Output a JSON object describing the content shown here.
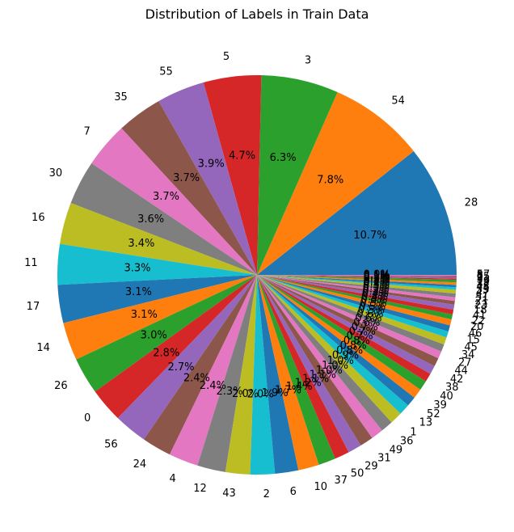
{
  "chart_data": {
    "type": "pie",
    "title": "Distribution of Labels in Train Data",
    "start_angle_deg": 0,
    "direction": "counterclockwise",
    "autopct": "%1.1f%%",
    "colors": [
      "#1f77b4",
      "#ff7f0e",
      "#2ca02c",
      "#d62728",
      "#9467bd",
      "#8c564b",
      "#e377c2",
      "#7f7f7f",
      "#bcbd22",
      "#17becf"
    ],
    "slices": [
      {
        "label": "28",
        "value": 10.7
      },
      {
        "label": "54",
        "value": 7.8
      },
      {
        "label": "3",
        "value": 6.3
      },
      {
        "label": "5",
        "value": 4.7
      },
      {
        "label": "55",
        "value": 3.9
      },
      {
        "label": "35",
        "value": 3.7
      },
      {
        "label": "7",
        "value": 3.7
      },
      {
        "label": "30",
        "value": 3.6
      },
      {
        "label": "16",
        "value": 3.4
      },
      {
        "label": "11",
        "value": 3.3
      },
      {
        "label": "17",
        "value": 3.1
      },
      {
        "label": "14",
        "value": 3.1
      },
      {
        "label": "26",
        "value": 3.0
      },
      {
        "label": "0",
        "value": 2.8
      },
      {
        "label": "56",
        "value": 2.7
      },
      {
        "label": "24",
        "value": 2.4
      },
      {
        "label": "4",
        "value": 2.4
      },
      {
        "label": "12",
        "value": 2.3
      },
      {
        "label": "43",
        "value": 2.0
      },
      {
        "label": "2",
        "value": 2.0
      },
      {
        "label": "6",
        "value": 1.9
      },
      {
        "label": "10",
        "value": 1.7
      },
      {
        "label": "37",
        "value": 1.4
      },
      {
        "label": "50",
        "value": 1.2
      },
      {
        "label": "29",
        "value": 1.1
      },
      {
        "label": "31",
        "value": 1.1
      },
      {
        "label": "49",
        "value": 1.0
      },
      {
        "label": "36",
        "value": 1.0
      },
      {
        "label": "1",
        "value": 1.0
      },
      {
        "label": "13",
        "value": 0.9
      },
      {
        "label": "52",
        "value": 0.8
      },
      {
        "label": "39",
        "value": 0.8
      },
      {
        "label": "40",
        "value": 0.8
      },
      {
        "label": "38",
        "value": 0.7
      },
      {
        "label": "42",
        "value": 0.7
      },
      {
        "label": "44",
        "value": 0.7
      },
      {
        "label": "27",
        "value": 0.6
      },
      {
        "label": "34",
        "value": 0.6
      },
      {
        "label": "45",
        "value": 0.6
      },
      {
        "label": "15",
        "value": 0.5
      },
      {
        "label": "46",
        "value": 0.5
      },
      {
        "label": "20",
        "value": 0.5
      },
      {
        "label": "22",
        "value": 0.4
      },
      {
        "label": "41",
        "value": 0.4
      },
      {
        "label": "18",
        "value": 0.4
      },
      {
        "label": "23",
        "value": 0.3
      },
      {
        "label": "21",
        "value": 0.3
      },
      {
        "label": "51",
        "value": 0.3
      },
      {
        "label": "47",
        "value": 0.3
      },
      {
        "label": "33",
        "value": 0.2
      },
      {
        "label": "48",
        "value": 0.2
      },
      {
        "label": "32",
        "value": 0.2
      },
      {
        "label": "19",
        "value": 0.2
      },
      {
        "label": "53",
        "value": 0.1
      },
      {
        "label": "9",
        "value": 0.1
      },
      {
        "label": "25",
        "value": 0.1
      },
      {
        "label": "8",
        "value": 0.1
      },
      {
        "label": "57",
        "value": 0.0
      }
    ]
  }
}
